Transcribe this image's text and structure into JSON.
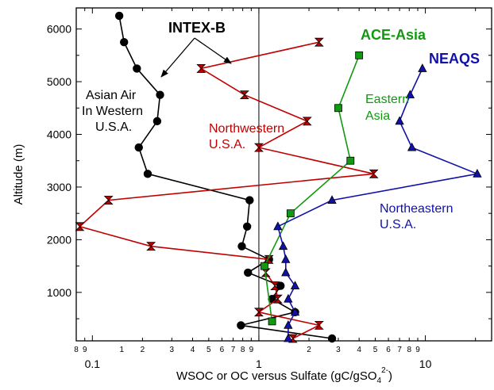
{
  "chart_data": {
    "type": "line",
    "xlabel": "WSOC or OC versus Sulfate  (gC/gSO",
    "xlabel_sub": "4",
    "xlabel_sup": "2-",
    "xlabel_end": ")",
    "ylabel": "Altitude (m)",
    "xscale": "log",
    "xlim": [
      0.08,
      25
    ],
    "ylim": [
      80,
      6400
    ],
    "reference_line_x": 1,
    "x_major_ticks": [
      {
        "value": 0.1,
        "label": "0.1"
      },
      {
        "value": 1,
        "label": "1"
      },
      {
        "value": 10,
        "label": "10"
      }
    ],
    "x_minor_ticks": [
      {
        "value": 0.08,
        "label": "8"
      },
      {
        "value": 0.09,
        "label": "9"
      },
      {
        "value": 0.2,
        "label": ""
      },
      {
        "value": 0.3,
        "label": ""
      },
      {
        "value": 0.4,
        "label": ""
      },
      {
        "value": 0.5,
        "label": ""
      },
      {
        "value": 0.6,
        "label": ""
      },
      {
        "value": 0.7,
        "label": ""
      },
      {
        "value": 0.8,
        "label": ""
      },
      {
        "value": 0.9,
        "label": ""
      },
      {
        "value": 2,
        "label": "2"
      },
      {
        "value": 3,
        "label": "3"
      },
      {
        "value": 4,
        "label": "4"
      },
      {
        "value": 5,
        "label": "5"
      },
      {
        "value": 6,
        "label": "6"
      },
      {
        "value": 7,
        "label": "7"
      },
      {
        "value": 8,
        "label": "8"
      },
      {
        "value": 9,
        "label": "9"
      },
      {
        "value": 20,
        "label": ""
      }
    ],
    "x_minor_labels_low": [
      {
        "value": 0.15,
        "label": "1"
      },
      {
        "value": 0.2,
        "label": "2"
      },
      {
        "value": 0.3,
        "label": "3"
      },
      {
        "value": 0.4,
        "label": "4"
      },
      {
        "value": 0.5,
        "label": "5"
      },
      {
        "value": 0.6,
        "label": "6"
      },
      {
        "value": 0.7,
        "label": "7"
      },
      {
        "value": 0.8,
        "label": "8"
      },
      {
        "value": 0.9,
        "label": "9"
      },
      {
        "value": 2,
        "label": "2"
      },
      {
        "value": 3,
        "label": "3"
      },
      {
        "value": 4,
        "label": "4"
      },
      {
        "value": 5,
        "label": "5"
      },
      {
        "value": 6,
        "label": "6"
      },
      {
        "value": 7,
        "label": "7"
      },
      {
        "value": 8,
        "label": "8"
      },
      {
        "value": 9,
        "label": "9"
      }
    ],
    "y_ticks": [
      1000,
      2000,
      3000,
      4000,
      5000,
      6000
    ],
    "series": [
      {
        "key": "asian-air",
        "marker": "circle",
        "color": "#000000",
        "fill": "#000000",
        "points": [
          [
            0.145,
            6250
          ],
          [
            0.155,
            5750
          ],
          [
            0.185,
            5250
          ],
          [
            0.255,
            4750
          ],
          [
            0.245,
            4250
          ],
          [
            0.19,
            3750
          ],
          [
            0.215,
            3250
          ],
          [
            0.88,
            2750
          ],
          [
            0.85,
            2250
          ],
          [
            0.79,
            1875
          ],
          [
            1.15,
            1625
          ],
          [
            0.86,
            1375
          ],
          [
            1.35,
            1125
          ],
          [
            1.2,
            875
          ],
          [
            1.65,
            625
          ],
          [
            0.78,
            375
          ],
          [
            2.75,
            125
          ]
        ]
      },
      {
        "key": "northwestern",
        "marker": "hourglass",
        "color": "#c00000",
        "fill": "#c00000",
        "points": [
          [
            2.3,
            5750
          ],
          [
            0.45,
            5250
          ],
          [
            0.82,
            4750
          ],
          [
            1.95,
            4250
          ],
          [
            1.0,
            3750
          ],
          [
            4.9,
            3250
          ],
          [
            0.125,
            2750
          ],
          [
            0.084,
            2250
          ],
          [
            0.225,
            1875
          ],
          [
            1.15,
            1625
          ],
          [
            1.1,
            1375
          ],
          [
            1.25,
            1125
          ],
          [
            1.3,
            875
          ],
          [
            1.0,
            625
          ],
          [
            2.3,
            375
          ],
          [
            1.6,
            125
          ]
        ]
      },
      {
        "key": "eastern-asia",
        "marker": "square",
        "color": "#119911",
        "fill": "#119911",
        "points": [
          [
            4.0,
            5500
          ],
          [
            3.0,
            4500
          ],
          [
            3.55,
            3500
          ],
          [
            1.55,
            2500
          ],
          [
            1.08,
            1500
          ],
          [
            1.2,
            450
          ]
        ]
      },
      {
        "key": "northeastern",
        "marker": "triangle",
        "color": "#1111aa",
        "fill": "#1111aa",
        "points": [
          [
            9.6,
            5250
          ],
          [
            8.1,
            4750
          ],
          [
            7.0,
            4250
          ],
          [
            8.3,
            3750
          ],
          [
            20.5,
            3250
          ],
          [
            2.75,
            2750
          ],
          [
            1.3,
            2250
          ],
          [
            1.4,
            1875
          ],
          [
            1.45,
            1625
          ],
          [
            1.45,
            1375
          ],
          [
            1.65,
            1125
          ],
          [
            1.5,
            875
          ],
          [
            1.65,
            625
          ],
          [
            1.5,
            375
          ],
          [
            1.5,
            125
          ]
        ]
      }
    ],
    "annotations": {
      "intex_title": "INTEX-B",
      "asian_air_1": "Asian Air",
      "asian_air_2": "In Western",
      "asian_air_3": "U.S.A.",
      "northwestern_1": "Northwestern",
      "northwestern_2": "U.S.A.",
      "ace_title": "ACE-Asia",
      "eastern_1": "Eastern",
      "eastern_2": "Asia",
      "neaqs_title": "NEAQS",
      "northeastern_1": "Northeastern",
      "northeastern_2": "U.S.A."
    },
    "colors": {
      "intex": "#000000",
      "northwestern": "#c00000",
      "ace": "#119911",
      "neaqs": "#1111aa"
    }
  }
}
